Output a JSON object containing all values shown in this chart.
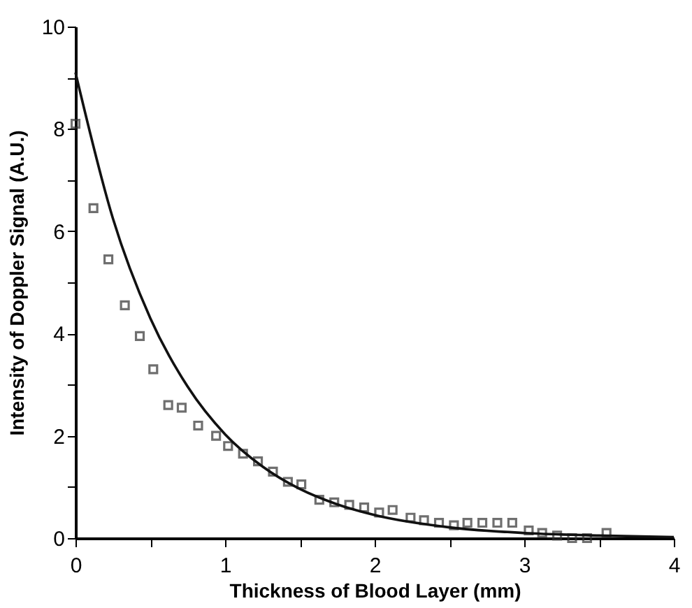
{
  "chart_data": {
    "type": "scatter",
    "xlabel": "Thickness  of  Blood  Layer  (mm)",
    "ylabel": "Intensity  of  Doppler  Signal  (A.U.)",
    "xlim": [
      0,
      4
    ],
    "ylim": [
      0,
      10
    ],
    "xticks": [
      0,
      {
        "value": 0.5,
        "label": null
      },
      1,
      {
        "value": 1.5,
        "label": null
      },
      2,
      {
        "value": 2.5,
        "label": null
      },
      3,
      {
        "value": 3.5,
        "label": null
      },
      4
    ],
    "yticks": [
      0,
      {
        "value": 1,
        "label": null
      },
      2,
      {
        "value": 3,
        "label": null
      },
      4,
      {
        "value": 5,
        "label": null
      },
      6,
      {
        "value": 7,
        "label": null
      },
      8,
      {
        "value": 9,
        "label": null
      },
      10
    ],
    "series": [
      {
        "marker": "square",
        "color": "#333333",
        "x": [
          0,
          0.12,
          0.22,
          0.33,
          0.43,
          0.52,
          0.62,
          0.71,
          0.82,
          0.94,
          1.02,
          1.12,
          1.22,
          1.32,
          1.42,
          1.51,
          1.63,
          1.73,
          1.83,
          1.93,
          2.03,
          2.12,
          2.24,
          2.33,
          2.43,
          2.53,
          2.62,
          2.72,
          2.82,
          2.92,
          3.03,
          3.12,
          3.22,
          3.32,
          3.42,
          3.55
        ],
        "values": [
          8.1,
          6.45,
          5.45,
          4.55,
          3.95,
          3.3,
          2.6,
          2.55,
          2.2,
          2.0,
          1.8,
          1.65,
          1.5,
          1.3,
          1.1,
          1.05,
          0.75,
          0.7,
          0.65,
          0.6,
          0.5,
          0.55,
          0.4,
          0.35,
          0.3,
          0.25,
          0.3,
          0.3,
          0.3,
          0.3,
          0.15,
          0.1,
          0.05,
          0,
          0,
          0.1
        ]
      },
      {
        "type": "line",
        "line_style": "solid",
        "color": "#111111",
        "x": [
          0,
          0.25,
          0.5,
          0.75,
          1,
          1.25,
          1.5,
          1.75,
          2,
          2.5,
          3,
          3.5,
          4
        ],
        "values": [
          9.1,
          6.25,
          4.3,
          2.96,
          2.03,
          1.4,
          0.96,
          0.66,
          0.45,
          0.21,
          0.1,
          0.05,
          0.02
        ]
      }
    ]
  }
}
